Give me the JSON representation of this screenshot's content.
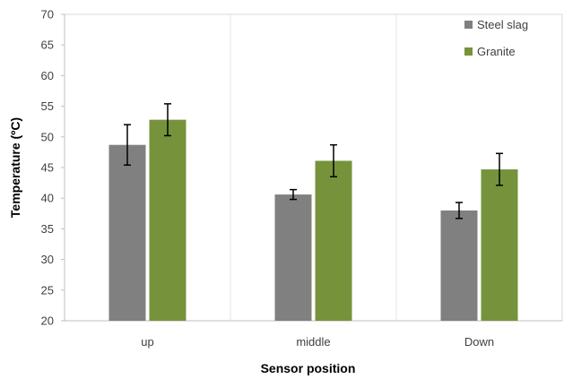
{
  "chart_data": {
    "type": "bar",
    "title": "",
    "xlabel": "Sensor position",
    "ylabel": "Temperature (ºC)",
    "ylim": [
      20,
      70
    ],
    "yticks": [
      20,
      25,
      30,
      35,
      40,
      45,
      50,
      55,
      60,
      65,
      70
    ],
    "categories": [
      "up",
      "middle",
      "Down"
    ],
    "series": [
      {
        "name": "Steel slag",
        "color": "#808080",
        "values": [
          48.7,
          40.6,
          38.0
        ],
        "error": [
          3.3,
          0.8,
          1.3
        ]
      },
      {
        "name": "Granite",
        "color": "#76933c",
        "values": [
          52.8,
          46.1,
          44.7
        ],
        "error": [
          2.6,
          2.6,
          2.6
        ]
      }
    ],
    "grid": "vertical-category-separators",
    "legend_position": "top-right"
  }
}
